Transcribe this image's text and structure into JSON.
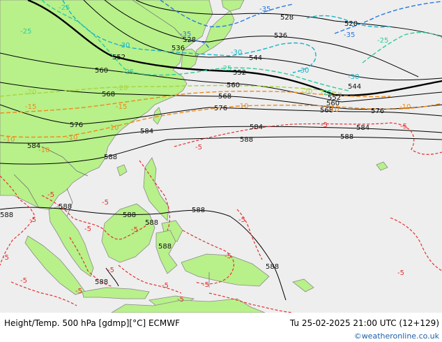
{
  "footer": {
    "title": "Height/Temp. 500 hPa [gdmp][°C] ECMWF",
    "datetime": "Tu 25-02-2025 21:00 UTC (12+129)",
    "credit": "©weatheronline.co.uk"
  },
  "colors": {
    "land": "#b8f08a",
    "sea": "#eeeeee",
    "height_contour": "#000000",
    "temp_warm": "#e53030",
    "temp_m10": "#ee8a1a",
    "temp_m20": "#a6d43a",
    "temp_m25": "#2ecc9a",
    "temp_m30": "#16b4c8",
    "temp_m35": "#2a78e0"
  },
  "height_labels": [
    "520",
    "528",
    "528",
    "536",
    "536",
    "544",
    "544",
    "552",
    "552",
    "552",
    "560",
    "560",
    "560",
    "568",
    "568",
    "568",
    "576",
    "576",
    "576",
    "584",
    "584",
    "584",
    "584",
    "588",
    "588",
    "588",
    "588",
    "588",
    "588",
    "588",
    "588",
    "588",
    "588",
    "588"
  ],
  "temp_labels": {
    "m5": [
      "-5",
      "-5",
      "-5",
      "-5",
      "-5",
      "-5",
      "-5",
      "-5",
      "-5",
      "-5",
      "-5",
      "-5",
      "-5",
      "-5",
      "-5",
      "-5",
      "-5",
      "-5"
    ],
    "m10": [
      "-10",
      "-10",
      "-10",
      "-10",
      "-10",
      "-10",
      "-10"
    ],
    "m15": [
      "-15",
      "-15"
    ],
    "m20": [
      "-20",
      "-20",
      "-20"
    ],
    "m25": [
      "-25",
      "-25",
      "-25",
      "-25",
      "-25",
      "-25"
    ],
    "m30": [
      "-30",
      "-30",
      "-30",
      "-30"
    ],
    "m35": [
      "-35",
      "-35",
      "-35"
    ]
  }
}
